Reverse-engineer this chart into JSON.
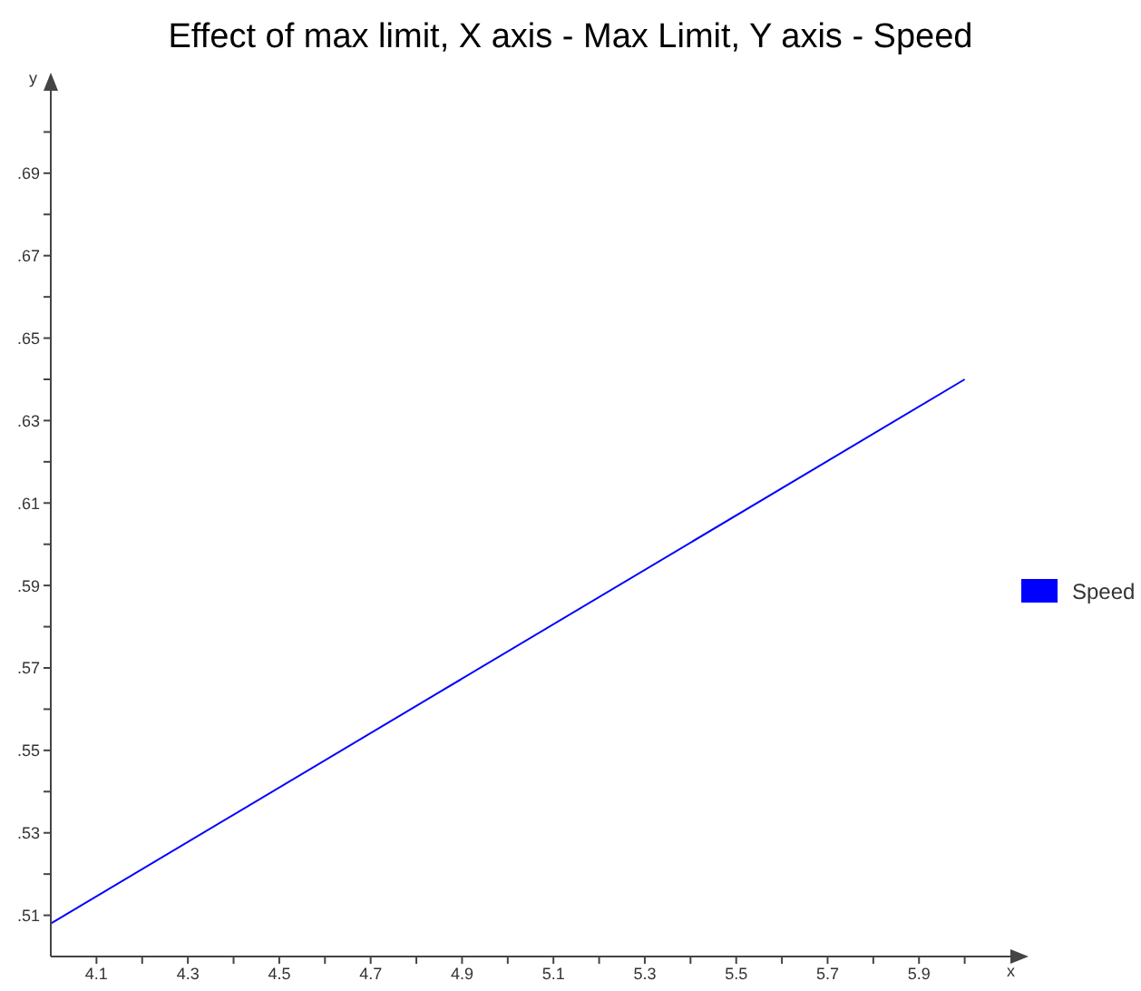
{
  "chart_data": {
    "type": "line",
    "title": "Effect of max limit, X axis - Max Limit, Y axis - Speed",
    "xlabel": "x",
    "ylabel": "y",
    "x": [
      4.0,
      6.0
    ],
    "series": [
      {
        "name": "Speed",
        "color": "#0000ff",
        "values": [
          0.508,
          0.64
        ]
      }
    ],
    "xlim": [
      4.0,
      6.1
    ],
    "xticks": [
      {
        "value": 4.1,
        "label": "4.1"
      },
      {
        "value": 4.2,
        "label": null
      },
      {
        "value": 4.3,
        "label": "4.3"
      },
      {
        "value": 4.4,
        "label": null
      },
      {
        "value": 4.5,
        "label": "4.5"
      },
      {
        "value": 4.6,
        "label": null
      },
      {
        "value": 4.7,
        "label": "4.7"
      },
      {
        "value": 4.8,
        "label": null
      },
      {
        "value": 4.9,
        "label": "4.9"
      },
      {
        "value": 5.0,
        "label": null
      },
      {
        "value": 5.1,
        "label": "5.1"
      },
      {
        "value": 5.2,
        "label": null
      },
      {
        "value": 5.3,
        "label": "5.3"
      },
      {
        "value": 5.4,
        "label": null
      },
      {
        "value": 5.5,
        "label": "5.5"
      },
      {
        "value": 5.6,
        "label": null
      },
      {
        "value": 5.7,
        "label": "5.7"
      },
      {
        "value": 5.8,
        "label": null
      },
      {
        "value": 5.9,
        "label": "5.9"
      },
      {
        "value": 6.0,
        "label": null
      }
    ],
    "ylim": [
      0.5,
      0.71
    ],
    "yticks": [
      {
        "value": 0.51,
        "label": ".51"
      },
      {
        "value": 0.52,
        "label": null
      },
      {
        "value": 0.53,
        "label": ".53"
      },
      {
        "value": 0.54,
        "label": null
      },
      {
        "value": 0.55,
        "label": ".55"
      },
      {
        "value": 0.56,
        "label": null
      },
      {
        "value": 0.57,
        "label": ".57"
      },
      {
        "value": 0.58,
        "label": null
      },
      {
        "value": 0.59,
        "label": ".59"
      },
      {
        "value": 0.6,
        "label": null
      },
      {
        "value": 0.61,
        "label": ".61"
      },
      {
        "value": 0.62,
        "label": null
      },
      {
        "value": 0.63,
        "label": ".63"
      },
      {
        "value": 0.64,
        "label": null
      },
      {
        "value": 0.65,
        "label": ".65"
      },
      {
        "value": 0.66,
        "label": null
      },
      {
        "value": 0.67,
        "label": ".67"
      },
      {
        "value": 0.68,
        "label": null
      },
      {
        "value": 0.69,
        "label": ".69"
      },
      {
        "value": 0.7,
        "label": null
      }
    ],
    "grid": false,
    "legend": "right",
    "marker": "none",
    "line_style": "solid"
  }
}
